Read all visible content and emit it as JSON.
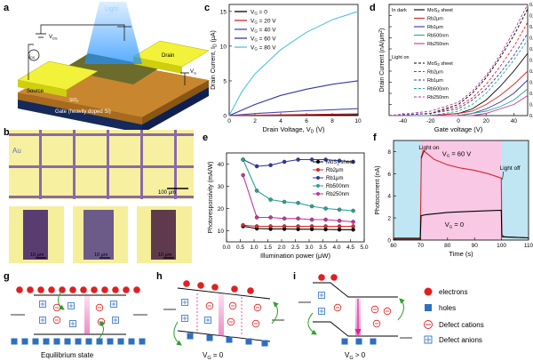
{
  "panels": {
    "a": {
      "letter": "a",
      "light": "Light",
      "vds": "V",
      "vds_sub": "DS",
      "ids": "I",
      "ids_sub": "DS",
      "source": "Source",
      "drain": "Drain",
      "vg": "V",
      "vg_sub": "G",
      "sio2": "SiO",
      "sio2_sub": "2",
      "gate": "Gate (heavily doped Si)"
    },
    "b": {
      "letter": "b",
      "au": "Au",
      "scale_top": "100 μm",
      "scale_bottom": "10 μm"
    },
    "c": {
      "letter": "c"
    },
    "d": {
      "letter": "d"
    },
    "e": {
      "letter": "e"
    },
    "f": {
      "letter": "f"
    },
    "g": {
      "letter": "g",
      "caption": "Equilibrium state"
    },
    "h": {
      "letter": "h",
      "caption_main": "V",
      "caption_sub": "G",
      "caption_rest": " = 0"
    },
    "i": {
      "letter": "i",
      "caption_main": "V",
      "caption_sub": "G",
      "caption_rest": " > 0"
    }
  },
  "legend_bottom": {
    "electrons": "electrons",
    "holes": "holes",
    "cations": "Defect cations",
    "anions": "Defect anions"
  },
  "chart_data": [
    {
      "id": "c",
      "type": "line",
      "xlabel": "Drain Voltage, V",
      "xlabel_sub": "D",
      "xlabel_unit": " (V)",
      "ylabel": "Drain Current, I",
      "ylabel_sub": "D",
      "ylabel_unit": " (μA)",
      "xlim": [
        0,
        10
      ],
      "ylim": [
        0,
        16
      ],
      "xticks": [
        0,
        2,
        4,
        6,
        8,
        10
      ],
      "yticks": [
        0,
        5,
        10,
        15
      ],
      "series": [
        {
          "name": "V",
          "sub": "G",
          "rest": " = 0",
          "color": "#000000",
          "x": [
            0,
            2,
            4,
            6,
            8,
            10
          ],
          "y": [
            0,
            0.02,
            0.04,
            0.06,
            0.08,
            0.1
          ]
        },
        {
          "name": "V",
          "sub": "G",
          "rest": " = 20 V",
          "color": "#d62728",
          "x": [
            0,
            2,
            4,
            6,
            8,
            10
          ],
          "y": [
            0,
            0.05,
            0.1,
            0.15,
            0.2,
            0.25
          ]
        },
        {
          "name": "V",
          "sub": "G",
          "rest": " = 40 V",
          "color": "#4a4ab0",
          "x": [
            0,
            2,
            4,
            6,
            8,
            10
          ],
          "y": [
            0,
            0.3,
            0.5,
            0.7,
            0.85,
            1.0
          ]
        },
        {
          "name": "V",
          "sub": "G",
          "rest": " = 60 V",
          "color": "#2f3a9e",
          "x": [
            0,
            1,
            2,
            4,
            6,
            8,
            10
          ],
          "y": [
            0,
            0.8,
            1.6,
            2.9,
            3.8,
            4.5,
            5.0
          ]
        },
        {
          "name": "V",
          "sub": "G",
          "rest": " = 80 V",
          "color": "#4fc3e0",
          "x": [
            0,
            1,
            2,
            4,
            6,
            8,
            10
          ],
          "y": [
            0,
            3.5,
            6,
            9.5,
            12,
            13.8,
            15
          ]
        }
      ]
    },
    {
      "id": "d",
      "type": "line",
      "xlabel": "Gate voltage (V)",
      "ylabel": "Drain Current (nA/μm",
      "ylabel_sup": "2",
      "ylabel_end": ")",
      "xlim": [
        -50,
        50
      ],
      "ylim": [
        0,
        0.5
      ],
      "xticks": [
        -40,
        -20,
        0,
        20,
        40
      ],
      "yticks": [
        0,
        0.05,
        0.1,
        0.15,
        0.2,
        0.25,
        0.3,
        0.35,
        0.4,
        0.45,
        0.5
      ],
      "ytick_labels": [
        "0.00",
        "0.05",
        "0.10",
        "0.15",
        "0.20",
        "0.25",
        "0.30",
        "0.35",
        "0.40",
        "0.45",
        "0.50"
      ],
      "legend_dark": "In dark",
      "legend_light": "Light on",
      "series": [
        {
          "name": "MoS",
          "sub": "2",
          "rest": " sheet",
          "group": "dark",
          "color": "#000000",
          "dash": false,
          "x": [
            -50,
            -20,
            0,
            10,
            20,
            30,
            40,
            50
          ],
          "y": [
            0,
            0,
            0.01,
            0.03,
            0.07,
            0.13,
            0.2,
            0.28
          ]
        },
        {
          "name": "Rb2μm",
          "group": "dark",
          "color": "#d62728",
          "dash": false,
          "x": [
            -50,
            -20,
            0,
            10,
            20,
            30,
            40,
            50
          ],
          "y": [
            0,
            0,
            0.01,
            0.02,
            0.05,
            0.09,
            0.14,
            0.2
          ]
        },
        {
          "name": "Rb1μm",
          "group": "dark",
          "color": "#2f3a9e",
          "dash": false,
          "x": [
            -50,
            -20,
            0,
            10,
            20,
            30,
            40,
            50
          ],
          "y": [
            0,
            0,
            0.0,
            0.01,
            0.03,
            0.06,
            0.1,
            0.16
          ]
        },
        {
          "name": "Rb500nm",
          "group": "dark",
          "color": "#2aa198",
          "dash": false,
          "x": [
            -50,
            -20,
            0,
            10,
            20,
            30,
            40,
            50
          ],
          "y": [
            0,
            0,
            0,
            0.01,
            0.02,
            0.04,
            0.07,
            0.12
          ]
        },
        {
          "name": "Rb250nm",
          "group": "dark",
          "color": "#c0359a",
          "dash": false,
          "x": [
            -50,
            -20,
            0,
            10,
            20,
            30,
            40,
            50
          ],
          "y": [
            0,
            0,
            0,
            0,
            0.01,
            0.03,
            0.05,
            0.09
          ]
        },
        {
          "name": "MoS",
          "sub": "2",
          "rest": " sheet",
          "group": "light",
          "color": "#000000",
          "dash": true,
          "x": [
            -50,
            -20,
            0,
            10,
            20,
            30,
            40,
            50
          ],
          "y": [
            0,
            0.01,
            0.05,
            0.1,
            0.17,
            0.26,
            0.36,
            0.48
          ]
        },
        {
          "name": "Rb2μm",
          "group": "light",
          "color": "#d62728",
          "dash": true,
          "x": [
            -50,
            -20,
            0,
            10,
            20,
            30,
            40,
            50
          ],
          "y": [
            0,
            0.01,
            0.04,
            0.08,
            0.14,
            0.22,
            0.31,
            0.42
          ]
        },
        {
          "name": "Rb1μm",
          "group": "light",
          "color": "#2f3a9e",
          "dash": true,
          "x": [
            -50,
            -20,
            0,
            10,
            20,
            30,
            40,
            50
          ],
          "y": [
            0,
            0.01,
            0.03,
            0.07,
            0.12,
            0.19,
            0.27,
            0.37
          ]
        },
        {
          "name": "Rb500nm",
          "group": "light",
          "color": "#2aa198",
          "dash": true,
          "x": [
            -50,
            -20,
            0,
            10,
            20,
            30,
            40,
            50
          ],
          "y": [
            0,
            0,
            0.02,
            0.05,
            0.1,
            0.17,
            0.25,
            0.34
          ]
        },
        {
          "name": "Rb250nm",
          "group": "light",
          "color": "#c0359a",
          "dash": true,
          "x": [
            -50,
            -20,
            0,
            10,
            20,
            30,
            40,
            50
          ],
          "y": [
            0,
            0.02,
            0.06,
            0.11,
            0.18,
            0.27,
            0.38,
            0.5
          ]
        }
      ]
    },
    {
      "id": "e",
      "type": "line",
      "xlabel": "Illumination power (μW)",
      "ylabel": "Photoresponsivity (mA/W)",
      "xlim": [
        0,
        5
      ],
      "ylim": [
        5,
        45
      ],
      "xticks": [
        0,
        0.5,
        1,
        1.5,
        2,
        2.5,
        3,
        3.5,
        4,
        4.5,
        5
      ],
      "xtick_labels": [
        "0.0",
        "0.5",
        "1.0",
        "1.5",
        "2.0",
        "2.5",
        "3.0",
        "3.5",
        "4.0",
        "4.5",
        "5.0"
      ],
      "yticks": [
        10,
        20,
        30,
        40
      ],
      "series": [
        {
          "name": "MoS",
          "sub": "2",
          "rest": " sheet",
          "color": "#000000",
          "x": [
            0.6,
            1.1,
            1.6,
            2.1,
            2.6,
            3.1,
            3.6,
            4.1,
            4.6
          ],
          "y": [
            12,
            11,
            10.8,
            10.8,
            10.7,
            10.7,
            10.6,
            10.5,
            10.5
          ]
        },
        {
          "name": "Rb2μm",
          "color": "#d62728",
          "x": [
            0.6,
            1.1,
            1.6,
            2.1,
            2.6,
            3.1,
            3.6,
            4.1,
            4.6
          ],
          "y": [
            12.5,
            12,
            12,
            12,
            12,
            12,
            12,
            12,
            12
          ]
        },
        {
          "name": "Rb1μm",
          "color": "#2f3a9e",
          "x": [
            0.6,
            1.1,
            1.6,
            2.1,
            2.6,
            3.1,
            3.6,
            4.1,
            4.6
          ],
          "y": [
            42,
            39,
            39.5,
            41,
            42,
            42,
            42,
            41.5,
            41
          ]
        },
        {
          "name": "Rb500nm",
          "color": "#2aa198",
          "x": [
            0.6,
            1.1,
            1.6,
            2.1,
            2.6,
            3.1,
            3.6,
            4.1,
            4.6
          ],
          "y": [
            42,
            28,
            24,
            23,
            22.5,
            21,
            20,
            19.5,
            19
          ]
        },
        {
          "name": "Rb250nm",
          "color": "#c0359a",
          "x": [
            0.6,
            1.1,
            1.6,
            2.1,
            2.6,
            3.1,
            3.6,
            4.1,
            4.6
          ],
          "y": [
            35,
            16,
            16,
            15.5,
            15.5,
            15,
            15,
            14.5,
            14
          ]
        }
      ]
    },
    {
      "id": "f",
      "type": "line",
      "xlabel": "Time (s)",
      "ylabel": "Photocurrent (nA)",
      "xlim": [
        60,
        110
      ],
      "ylim": [
        0,
        9
      ],
      "xticks": [
        60,
        70,
        80,
        90,
        100,
        110
      ],
      "yticks": [
        0,
        2,
        4,
        6,
        8
      ],
      "light_on": "Light on",
      "light_off": "Light off",
      "light_window": [
        70,
        100
      ],
      "series": [
        {
          "name": "V",
          "sub": "G",
          "rest": " = 60 V",
          "color": "#d62728",
          "x": [
            60,
            69.9,
            70.3,
            71,
            72,
            75,
            80,
            85,
            90,
            95,
            99.9,
            100.1,
            101,
            110
          ],
          "y": [
            0.2,
            0.2,
            7.5,
            8.1,
            7.9,
            7.3,
            6.8,
            6.5,
            6.3,
            6.0,
            5.6,
            0.5,
            0.3,
            0.2
          ]
        },
        {
          "name": "V",
          "sub": "G",
          "rest": " = 0",
          "color": "#000000",
          "x": [
            60,
            69.9,
            70.2,
            72,
            80,
            90,
            99.9,
            100.1,
            110
          ],
          "y": [
            0.1,
            0.1,
            2.2,
            2.3,
            2.5,
            2.6,
            2.7,
            0.3,
            0.2
          ]
        }
      ]
    }
  ]
}
